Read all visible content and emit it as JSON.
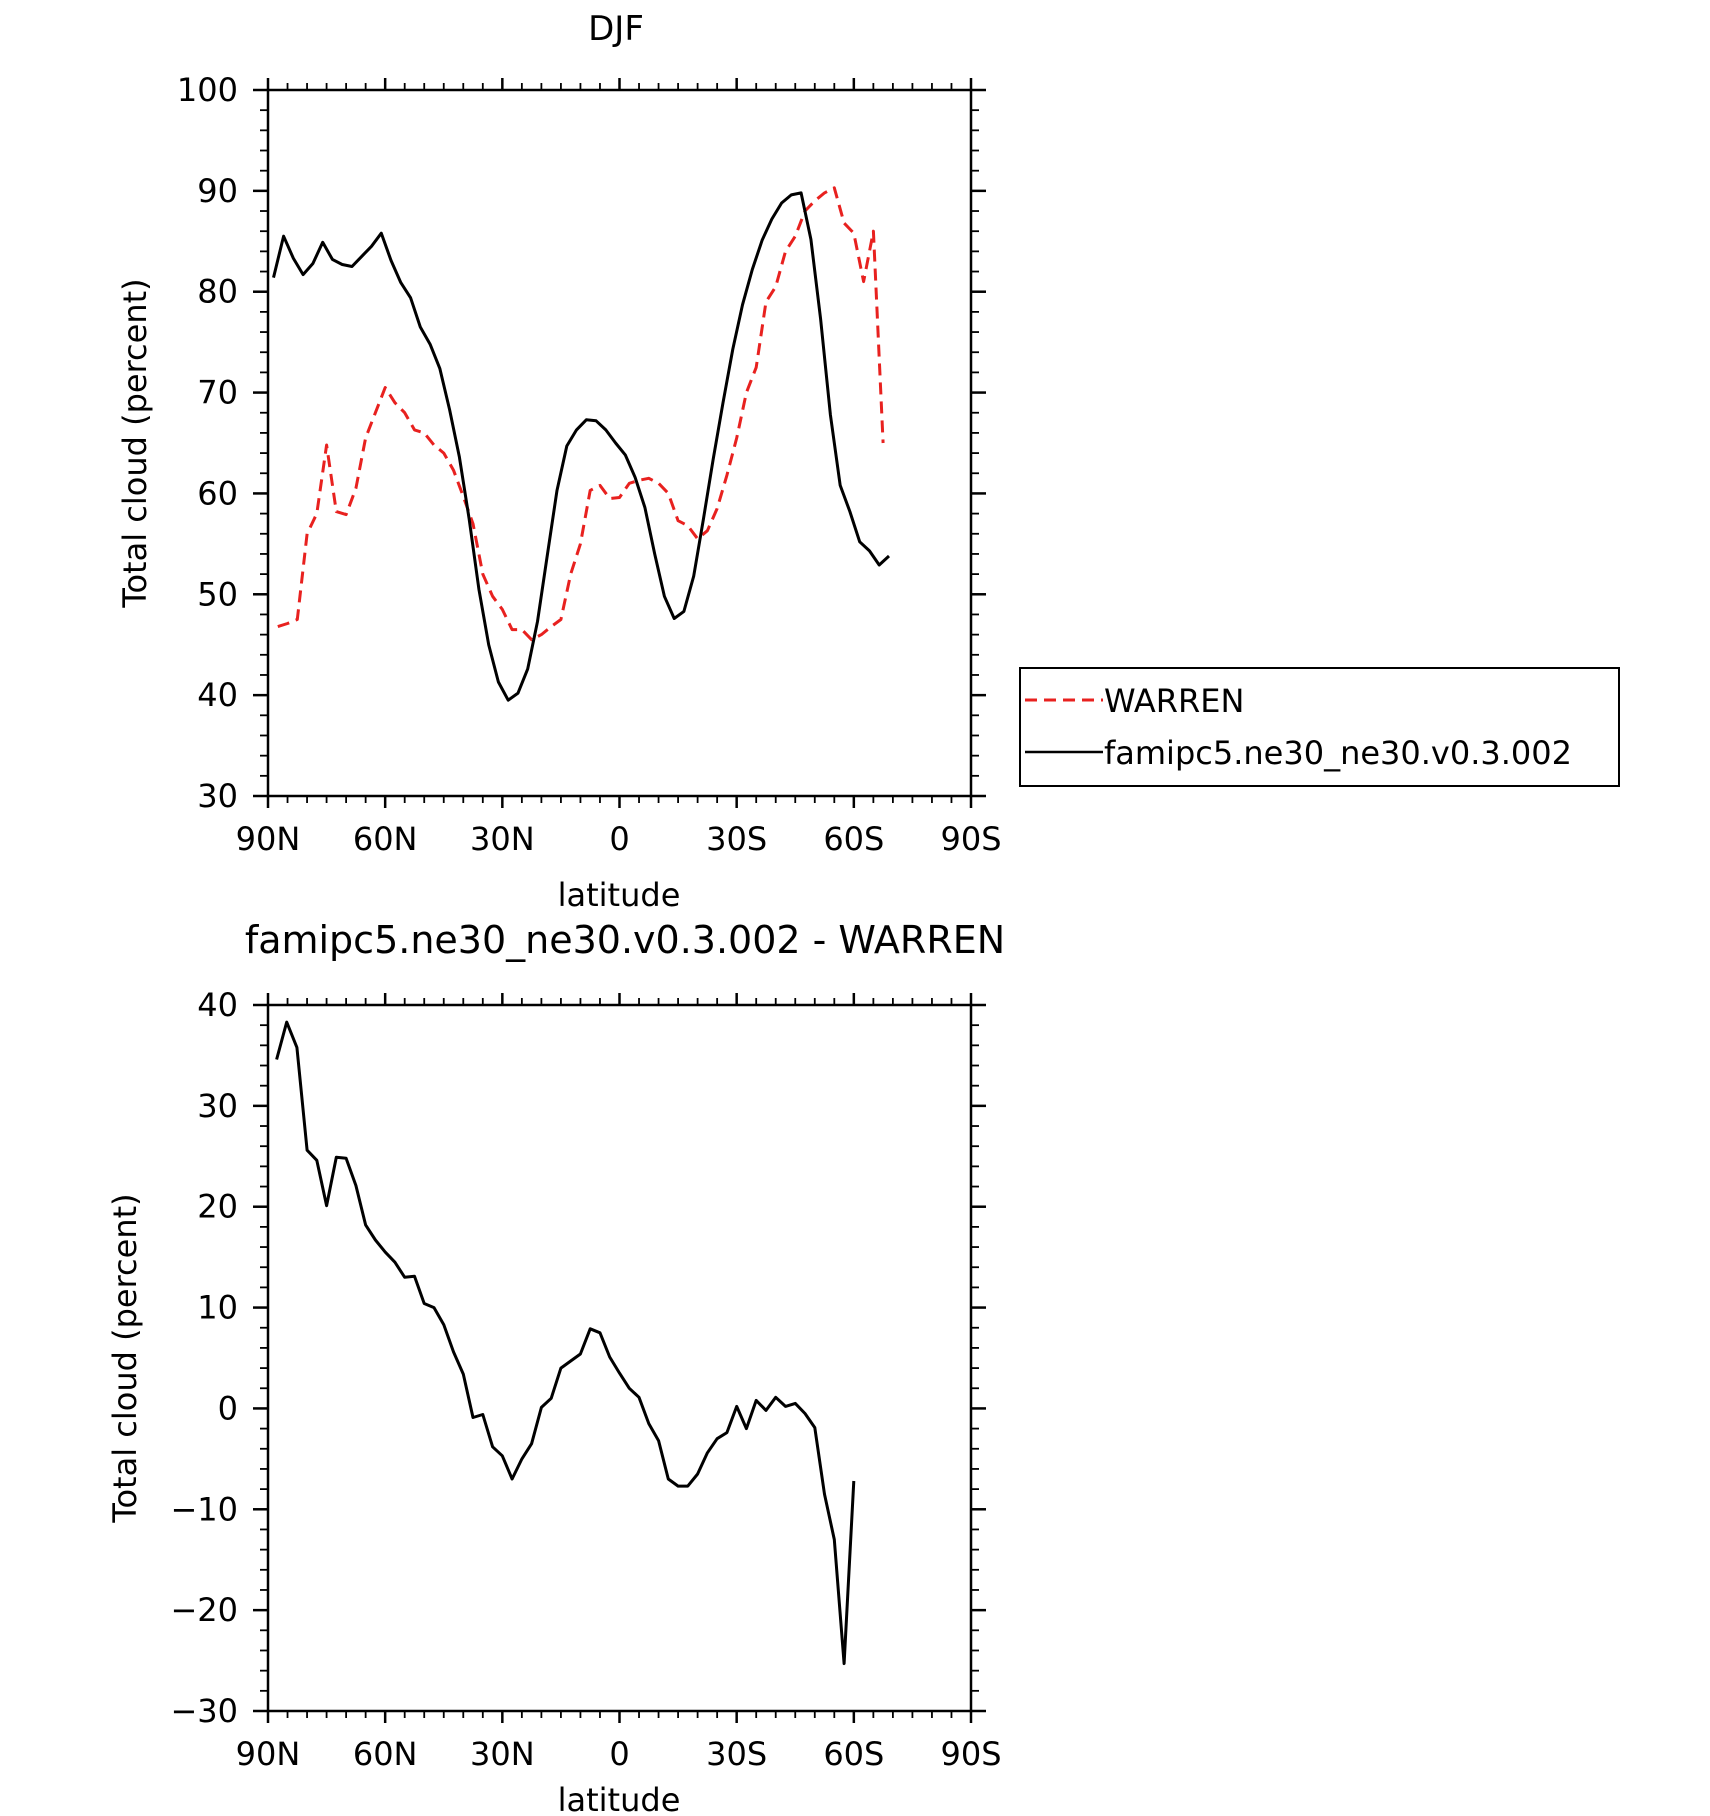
{
  "chart_data": [
    {
      "type": "line",
      "title": "DJF",
      "xlabel": "latitude",
      "ylabel": "Total cloud (percent)",
      "xlim": [
        90,
        -90
      ],
      "ylim": [
        30,
        100
      ],
      "x_ticks": [
        {
          "v": 90,
          "label": "90N"
        },
        {
          "v": 60,
          "label": "60N"
        },
        {
          "v": 30,
          "label": "30N"
        },
        {
          "v": 0,
          "label": "0"
        },
        {
          "v": -30,
          "label": "30S"
        },
        {
          "v": -60,
          "label": "60S"
        },
        {
          "v": -90,
          "label": "90S"
        }
      ],
      "y_ticks": [
        30,
        40,
        50,
        60,
        70,
        80,
        90,
        100
      ],
      "legend": {
        "placement": "right",
        "entries": [
          {
            "label": "WARREN",
            "color": "#e8211f",
            "dash": true
          },
          {
            "label": "famipc5.ne30_ne30.v0.3.002",
            "color": "#000000",
            "dash": false
          }
        ]
      },
      "series": [
        {
          "name": "WARREN",
          "color": "#e8211f",
          "dash": true,
          "points": [
            [
              87.5,
              46.8
            ],
            [
              85,
              47.1
            ],
            [
              82.5,
              47.5
            ],
            [
              80,
              56
            ],
            [
              77.5,
              58
            ],
            [
              75,
              64.8
            ],
            [
              72.5,
              58.2
            ],
            [
              70,
              57.9
            ],
            [
              67.5,
              60.5
            ],
            [
              65,
              65.5
            ],
            [
              62.5,
              68
            ],
            [
              60,
              70.5
            ],
            [
              57.5,
              69
            ],
            [
              55,
              68
            ],
            [
              52.5,
              66.3
            ],
            [
              50,
              66
            ],
            [
              47.5,
              64.8
            ],
            [
              45,
              64
            ],
            [
              42.5,
              62.3
            ],
            [
              40,
              59.7
            ],
            [
              37.5,
              57
            ],
            [
              35,
              52
            ],
            [
              32.5,
              49.8
            ],
            [
              30,
              48.5
            ],
            [
              27.5,
              46.5
            ],
            [
              25,
              46.5
            ],
            [
              22.5,
              45.5
            ],
            [
              20,
              46
            ],
            [
              17.5,
              46.8
            ],
            [
              15,
              47.5
            ],
            [
              12.5,
              52
            ],
            [
              10,
              55
            ],
            [
              7.5,
              60.3
            ],
            [
              5,
              60.8
            ],
            [
              2.5,
              59.5
            ],
            [
              0,
              59.6
            ],
            [
              -2.5,
              61
            ],
            [
              -5,
              61.3
            ],
            [
              -7.5,
              61.5
            ],
            [
              -10,
              61
            ],
            [
              -12.5,
              60
            ],
            [
              -15,
              57.3
            ],
            [
              -17.5,
              56.8
            ],
            [
              -20,
              55.5
            ],
            [
              -22.5,
              56.3
            ],
            [
              -25,
              58.5
            ],
            [
              -27.5,
              61.8
            ],
            [
              -30,
              65.5
            ],
            [
              -32.5,
              70
            ],
            [
              -35,
              72.5
            ],
            [
              -37.5,
              79
            ],
            [
              -40,
              80.5
            ],
            [
              -42.5,
              84
            ],
            [
              -45,
              85.5
            ],
            [
              -47.5,
              88
            ],
            [
              -50,
              89
            ],
            [
              -52.5,
              89.8
            ],
            [
              -55,
              90.3
            ],
            [
              -57.5,
              86.8
            ],
            [
              -60,
              85.8
            ],
            [
              -62.5,
              81
            ],
            [
              -65,
              86
            ],
            [
              -67.5,
              65
            ]
          ]
        },
        {
          "name": "famipc5.ne30_ne30.v0.3.002",
          "color": "#000000",
          "dash": false,
          "points": [
            [
              88.6,
              81.4
            ],
            [
              86,
              85.5
            ],
            [
              83.5,
              83.3
            ],
            [
              81,
              81.7
            ],
            [
              78.5,
              82.8
            ],
            [
              76,
              84.9
            ],
            [
              73.5,
              83.2
            ],
            [
              71,
              82.7
            ],
            [
              68.5,
              82.5
            ],
            [
              66,
              83.5
            ],
            [
              63.5,
              84.5
            ],
            [
              61,
              85.8
            ],
            [
              58.5,
              83.1
            ],
            [
              56,
              80.9
            ],
            [
              53.5,
              79.4
            ],
            [
              51,
              76.5
            ],
            [
              48.5,
              74.8
            ],
            [
              46,
              72.4
            ],
            [
              43.5,
              68.3
            ],
            [
              41,
              63.6
            ],
            [
              38.5,
              57.5
            ],
            [
              36,
              50.5
            ],
            [
              33.5,
              45
            ],
            [
              31,
              41.3
            ],
            [
              28.5,
              39.5
            ],
            [
              26,
              40.2
            ],
            [
              23.5,
              42.6
            ],
            [
              21,
              47.3
            ],
            [
              18.5,
              53.8
            ],
            [
              16,
              60.3
            ],
            [
              13.5,
              64.7
            ],
            [
              11,
              66.3
            ],
            [
              8.5,
              67.3
            ],
            [
              6,
              67.2
            ],
            [
              3.5,
              66.3
            ],
            [
              1,
              65
            ],
            [
              -1.5,
              63.8
            ],
            [
              -4,
              61.6
            ],
            [
              -6.5,
              58.6
            ],
            [
              -9,
              54
            ],
            [
              -11.5,
              49.8
            ],
            [
              -14,
              47.6
            ],
            [
              -16.5,
              48.3
            ],
            [
              -19,
              51.8
            ],
            [
              -21.5,
              57.5
            ],
            [
              -24,
              63.4
            ],
            [
              -26.5,
              69
            ],
            [
              -29,
              74.3
            ],
            [
              -31.5,
              78.7
            ],
            [
              -34,
              82.2
            ],
            [
              -36.5,
              85.1
            ],
            [
              -39,
              87.2
            ],
            [
              -41.5,
              88.8
            ],
            [
              -44,
              89.6
            ],
            [
              -46.5,
              89.8
            ],
            [
              -49,
              85.2
            ],
            [
              -51.5,
              77.3
            ],
            [
              -54,
              67.8
            ],
            [
              -56.5,
              60.8
            ],
            [
              -59,
              58.2
            ],
            [
              -61.5,
              55.2
            ],
            [
              -64,
              54.3
            ],
            [
              -66.5,
              52.9
            ],
            [
              -69,
              53.8
            ]
          ]
        }
      ]
    },
    {
      "type": "line",
      "title": "famipc5.ne30_ne30.v0.3.002 - WARREN",
      "xlabel": "latitude",
      "ylabel": "Total cloud (percent)",
      "xlim": [
        90,
        -90
      ],
      "ylim": [
        -30,
        40
      ],
      "x_ticks": [
        {
          "v": 90,
          "label": "90N"
        },
        {
          "v": 60,
          "label": "60N"
        },
        {
          "v": 30,
          "label": "30N"
        },
        {
          "v": 0,
          "label": "0"
        },
        {
          "v": -30,
          "label": "30S"
        },
        {
          "v": -60,
          "label": "60S"
        },
        {
          "v": -90,
          "label": "90S"
        }
      ],
      "y_ticks": [
        -30,
        -20,
        -10,
        0,
        10,
        20,
        30,
        40
      ],
      "series": [
        {
          "color": "#000000",
          "dash": false,
          "points": [
            [
              87.8,
              34.6
            ],
            [
              85.2,
              38.3
            ],
            [
              82.6,
              35.8
            ],
            [
              80,
              25.6
            ],
            [
              77.5,
              24.6
            ],
            [
              75,
              20.1
            ],
            [
              72.5,
              24.9
            ],
            [
              70,
              24.8
            ],
            [
              67.5,
              22.1
            ],
            [
              65,
              18.2
            ],
            [
              62.5,
              16.7
            ],
            [
              60,
              15.5
            ],
            [
              57.5,
              14.5
            ],
            [
              55,
              13
            ],
            [
              52.5,
              13.1
            ],
            [
              50,
              10.4
            ],
            [
              47.5,
              10
            ],
            [
              45,
              8.3
            ],
            [
              42.5,
              5.6
            ],
            [
              40,
              3.4
            ],
            [
              37.5,
              -0.9
            ],
            [
              35,
              -0.6
            ],
            [
              32.5,
              -3.8
            ],
            [
              30,
              -4.7
            ],
            [
              27.5,
              -7
            ],
            [
              25,
              -5
            ],
            [
              22.5,
              -3.5
            ],
            [
              20,
              0.1
            ],
            [
              17.5,
              1
            ],
            [
              15,
              4
            ],
            [
              12.5,
              4.7
            ],
            [
              10,
              5.4
            ],
            [
              7.5,
              7.9
            ],
            [
              5,
              7.5
            ],
            [
              2.5,
              5.1
            ],
            [
              0,
              3.5
            ],
            [
              -2.5,
              2
            ],
            [
              -5,
              1.1
            ],
            [
              -7.5,
              -1.5
            ],
            [
              -10,
              -3.2
            ],
            [
              -12.5,
              -7
            ],
            [
              -15,
              -7.7
            ],
            [
              -17.5,
              -7.7
            ],
            [
              -20,
              -6.5
            ],
            [
              -22.5,
              -4.4
            ],
            [
              -25,
              -3
            ],
            [
              -27.5,
              -2.4
            ],
            [
              -30,
              0.2
            ],
            [
              -32.5,
              -2
            ],
            [
              -35,
              0.8
            ],
            [
              -37.5,
              -0.2
            ],
            [
              -40,
              1.1
            ],
            [
              -42.5,
              0.2
            ],
            [
              -45,
              0.5
            ],
            [
              -47.5,
              -0.5
            ],
            [
              -50,
              -1.9
            ],
            [
              -52.5,
              -8.5
            ],
            [
              -55,
              -13
            ],
            [
              -57.5,
              -25.3
            ],
            [
              -60,
              -7.2
            ]
          ]
        }
      ]
    }
  ]
}
